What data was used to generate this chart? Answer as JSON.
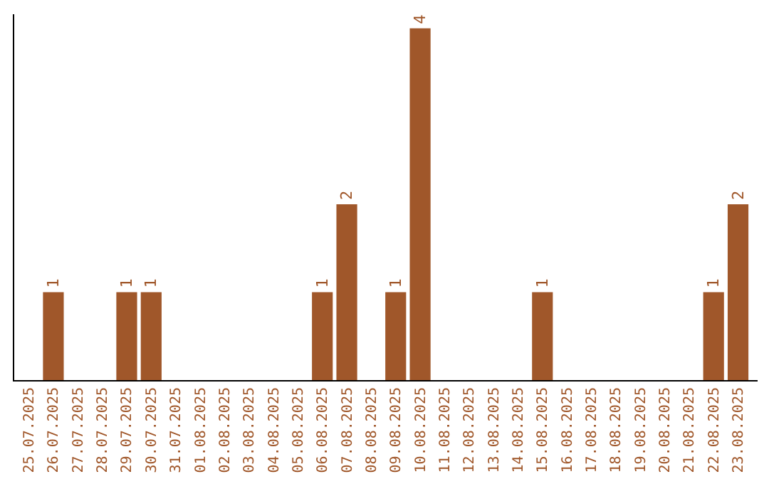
{
  "chart_data": {
    "type": "bar",
    "categories": [
      "25.07.2025",
      "26.07.2025",
      "27.07.2025",
      "28.07.2025",
      "29.07.2025",
      "30.07.2025",
      "31.07.2025",
      "01.08.2025",
      "02.08.2025",
      "03.08.2025",
      "04.08.2025",
      "05.08.2025",
      "06.08.2025",
      "07.08.2025",
      "08.08.2025",
      "09.08.2025",
      "10.08.2025",
      "11.08.2025",
      "12.08.2025",
      "13.08.2025",
      "14.08.2025",
      "15.08.2025",
      "16.08.2025",
      "17.08.2025",
      "18.08.2025",
      "19.08.2025",
      "20.08.2025",
      "21.08.2025",
      "22.08.2025",
      "23.08.2025"
    ],
    "values": [
      0,
      1,
      0,
      0,
      1,
      1,
      0,
      0,
      0,
      0,
      0,
      0,
      1,
      2,
      0,
      1,
      4,
      0,
      0,
      0,
      0,
      1,
      0,
      0,
      0,
      0,
      0,
      0,
      1,
      2
    ],
    "value_labels": [
      null,
      "1",
      null,
      null,
      "1",
      "1",
      null,
      null,
      null,
      null,
      null,
      null,
      "1",
      "2",
      null,
      "1",
      "4",
      null,
      null,
      null,
      null,
      "1",
      null,
      null,
      null,
      null,
      null,
      null,
      "1",
      "2"
    ],
    "color": "#a0572a",
    "ylim": [
      0,
      4.16
    ],
    "tick_labels": "x",
    "legend": false
  }
}
